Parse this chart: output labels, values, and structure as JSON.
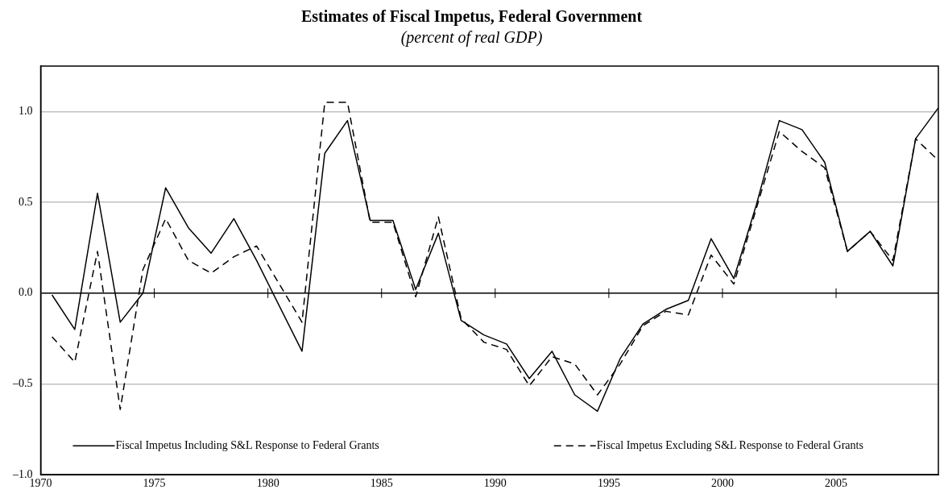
{
  "chart_data": {
    "type": "line",
    "title": "Estimates of Fiscal Impetus, Federal Government",
    "subtitle": "(percent of real GDP)",
    "x": [
      1970.5,
      1971.5,
      1972.5,
      1973.5,
      1974.5,
      1975.5,
      1976.5,
      1977.5,
      1978.5,
      1979.5,
      1980.5,
      1981.5,
      1982.5,
      1983.5,
      1984.5,
      1985.5,
      1986.5,
      1987.5,
      1988.5,
      1989.5,
      1990.5,
      1991.5,
      1992.5,
      1993.5,
      1994.5,
      1995.5,
      1996.5,
      1997.5,
      1998.5,
      1999.5,
      2000.5,
      2001.5,
      2002.5,
      2003.5,
      2004.5,
      2005.5,
      2006.5,
      2007.5,
      2008.5,
      2009.5
    ],
    "series": [
      {
        "name": "Fiscal Impetus Including S&L Response to Federal Grants",
        "color": "#000000",
        "line_style": "solid",
        "values": [
          -0.01,
          -0.2,
          0.55,
          -0.16,
          0.0,
          0.58,
          0.36,
          0.22,
          0.41,
          0.18,
          -0.07,
          -0.32,
          0.77,
          0.95,
          0.4,
          0.4,
          0.02,
          0.33,
          -0.15,
          -0.23,
          -0.28,
          -0.47,
          -0.32,
          -0.56,
          -0.65,
          -0.36,
          -0.17,
          -0.09,
          -0.04,
          0.3,
          0.08,
          0.49,
          0.95,
          0.9,
          0.72,
          0.23,
          0.34,
          0.15,
          0.85,
          1.02
        ]
      },
      {
        "name": "Fiscal Impetus Excluding S&L Response to Federal Grants",
        "color": "#000000",
        "line_style": "dashed",
        "values": [
          -0.24,
          -0.38,
          0.23,
          -0.64,
          0.13,
          0.41,
          0.18,
          0.11,
          0.2,
          0.26,
          0.05,
          -0.16,
          1.05,
          1.05,
          0.39,
          0.39,
          -0.02,
          0.42,
          -0.14,
          -0.27,
          -0.31,
          -0.51,
          -0.35,
          -0.39,
          -0.56,
          -0.39,
          -0.18,
          -0.1,
          -0.12,
          0.21,
          0.05,
          0.47,
          0.89,
          0.78,
          0.69,
          0.23,
          0.34,
          0.18,
          0.85,
          0.73
        ]
      }
    ],
    "xlim": [
      1970,
      2009.5
    ],
    "xticks": [
      1970,
      1975,
      1980,
      1985,
      1990,
      1995,
      2000,
      2005
    ],
    "ylim": [
      -1.0,
      1.25
    ],
    "yticks": [
      {
        "value": -1.0,
        "label": "–1.0"
      },
      {
        "value": -0.5,
        "label": "–0.5"
      },
      {
        "value": 0,
        "label": "0.0"
      },
      {
        "value": 0.5,
        "label": "0.5"
      },
      {
        "value": 1.0,
        "label": "1.0"
      }
    ],
    "grid": "y",
    "legend": "bottom",
    "marker": "none"
  }
}
